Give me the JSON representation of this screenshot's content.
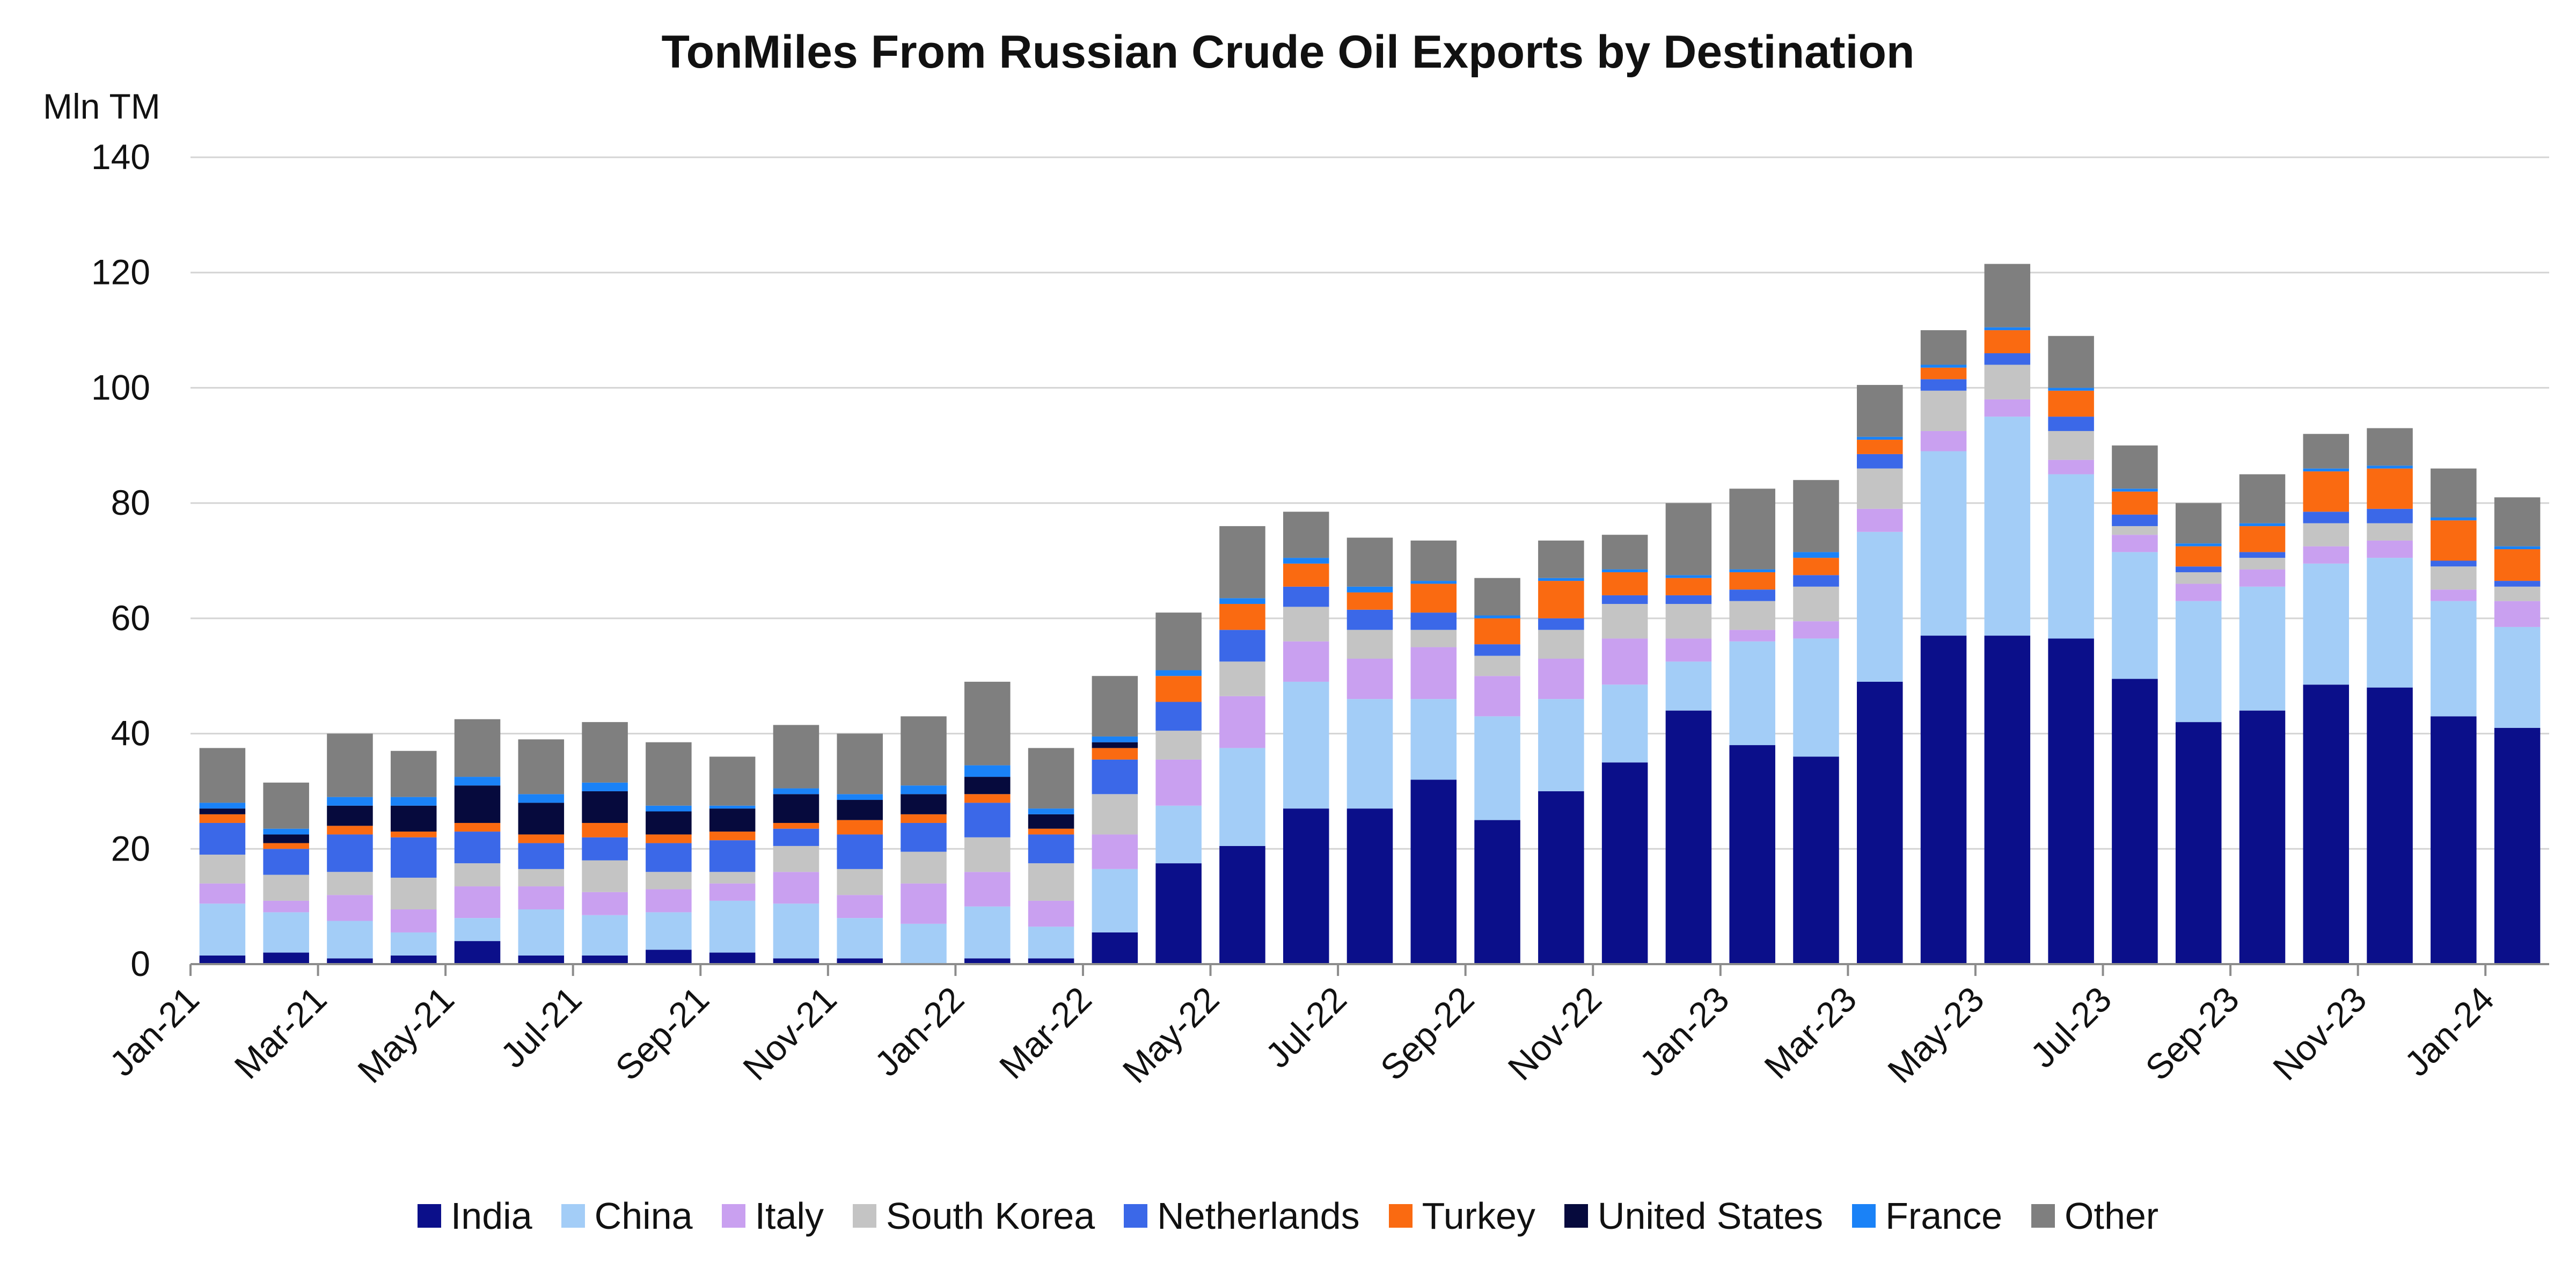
{
  "chart_data": {
    "type": "bar",
    "stacked": true,
    "title": "TonMiles From Russian Crude Oil Exports by Destination",
    "ylabel": "Mln TM",
    "xlabel": "",
    "ylim": [
      0,
      140
    ],
    "yticks": [
      0,
      20,
      40,
      60,
      80,
      100,
      120,
      140
    ],
    "grid": true,
    "legend_position": "bottom",
    "categories": [
      "Jan-21",
      "Feb-21",
      "Mar-21",
      "Apr-21",
      "May-21",
      "Jun-21",
      "Jul-21",
      "Aug-21",
      "Sep-21",
      "Oct-21",
      "Nov-21",
      "Dec-21",
      "Jan-22",
      "Feb-22",
      "Mar-22",
      "Apr-22",
      "May-22",
      "Jun-22",
      "Jul-22",
      "Aug-22",
      "Sep-22",
      "Oct-22",
      "Nov-22",
      "Dec-22",
      "Jan-23",
      "Feb-23",
      "Mar-23",
      "Apr-23",
      "May-23",
      "Jun-23",
      "Jul-23",
      "Aug-23",
      "Sep-23",
      "Oct-23",
      "Nov-23",
      "Dec-23",
      "Jan-24"
    ],
    "x_tick_labels": [
      "Jan-21",
      "Mar-21",
      "May-21",
      "Jul-21",
      "Sep-21",
      "Nov-21",
      "Jan-22",
      "Mar-22",
      "May-22",
      "Jul-22",
      "Sep-22",
      "Nov-22",
      "Jan-23",
      "Mar-23",
      "May-23",
      "Jul-23",
      "Sep-23",
      "Nov-23",
      "Jan-24"
    ],
    "series": [
      {
        "name": "India",
        "color": "#0b0f8a",
        "values": [
          1.5,
          2,
          1,
          1.5,
          4,
          1.5,
          1.5,
          2.5,
          2,
          1,
          1,
          0,
          1,
          1,
          5.5,
          17.5,
          20.5,
          27,
          27,
          32,
          25,
          30,
          35,
          44,
          38,
          36,
          49,
          57,
          57,
          56.5,
          49.5,
          42,
          44,
          48.5,
          48,
          43,
          41
        ]
      },
      {
        "name": "China",
        "color": "#a3cdf7",
        "values": [
          9,
          7,
          6.5,
          4,
          4,
          8,
          7,
          6.5,
          9,
          9.5,
          7,
          7,
          9,
          5.5,
          11,
          10,
          17,
          22,
          19,
          14,
          18,
          16,
          13.5,
          8.5,
          18,
          20.5,
          26,
          32,
          38,
          28.5,
          22,
          21,
          21.5,
          21,
          22.5,
          20,
          17.5
        ]
      },
      {
        "name": "Italy",
        "color": "#c9a0f0",
        "values": [
          3.5,
          2,
          4.5,
          4,
          5.5,
          4,
          4,
          4,
          3,
          5.5,
          4,
          7,
          6,
          4.5,
          6,
          8,
          9,
          7,
          7,
          9,
          7,
          7,
          8,
          4,
          2,
          3,
          4,
          3.5,
          3,
          2.5,
          3,
          3,
          3,
          3,
          3,
          2,
          4.5
        ]
      },
      {
        "name": "South Korea",
        "color": "#c4c4c4",
        "values": [
          5,
          4.5,
          4,
          5.5,
          4,
          3,
          5.5,
          3,
          2,
          4.5,
          4.5,
          5.5,
          6,
          6.5,
          7,
          5,
          6,
          6,
          5,
          3,
          3.5,
          5,
          6,
          6,
          5,
          6,
          7,
          7,
          6,
          5,
          1.5,
          2,
          2,
          4,
          3,
          4,
          2.5
        ]
      },
      {
        "name": "Netherlands",
        "color": "#3b68e8",
        "values": [
          5.5,
          4.5,
          6.5,
          7,
          5.5,
          4.5,
          4,
          5,
          5.5,
          3,
          6,
          5,
          6,
          5,
          6,
          5,
          5.5,
          3.5,
          3.5,
          3,
          2,
          2,
          1.5,
          1.5,
          2,
          2,
          2.5,
          2,
          2,
          2.5,
          2,
          1,
          1,
          2,
          2.5,
          1,
          1
        ]
      },
      {
        "name": "Turkey",
        "color": "#fa6a11",
        "values": [
          1.5,
          1,
          1.5,
          1,
          1.5,
          1.5,
          2.5,
          1.5,
          1.5,
          1,
          2.5,
          1.5,
          1.5,
          1,
          2,
          4.5,
          4.5,
          4,
          3,
          5,
          4.5,
          6.5,
          4,
          3,
          3,
          3,
          2.5,
          2,
          4,
          4.5,
          4,
          3.5,
          4.5,
          7,
          7,
          7,
          5.5
        ]
      },
      {
        "name": "United States",
        "color": "#060a3d",
        "values": [
          1,
          1.5,
          3.5,
          4.5,
          6.5,
          5.5,
          5.5,
          4,
          4,
          5,
          3.5,
          3.5,
          3,
          2.5,
          1,
          0,
          0,
          0,
          0,
          0,
          0,
          0,
          0,
          0,
          0,
          0,
          0,
          0,
          0,
          0,
          0,
          0,
          0,
          0,
          0,
          0,
          0
        ]
      },
      {
        "name": "France",
        "color": "#1a82f7",
        "values": [
          1,
          1,
          1.5,
          1.5,
          1.5,
          1.5,
          1.5,
          1,
          0.5,
          1,
          1,
          1.5,
          2,
          1,
          1,
          1,
          1,
          1,
          1,
          0.5,
          0.5,
          0.5,
          0.5,
          0.5,
          0.5,
          1,
          0.5,
          0.5,
          0.5,
          0.5,
          0.5,
          0.5,
          0.5,
          0.5,
          0.5,
          0.5,
          0.5
        ]
      },
      {
        "name": "Other",
        "color": "#7f7f7f",
        "values": [
          9.5,
          8,
          11,
          8,
          10,
          9.5,
          10.5,
          11,
          8.5,
          11,
          10.5,
          12,
          14.5,
          10.5,
          10.5,
          10,
          12.5,
          8,
          8.5,
          7,
          6.5,
          6.5,
          6,
          12.5,
          14,
          12.5,
          9,
          6,
          11,
          9,
          7.5,
          7,
          8.5,
          6,
          6.5,
          8.5,
          8.5
        ]
      }
    ]
  }
}
